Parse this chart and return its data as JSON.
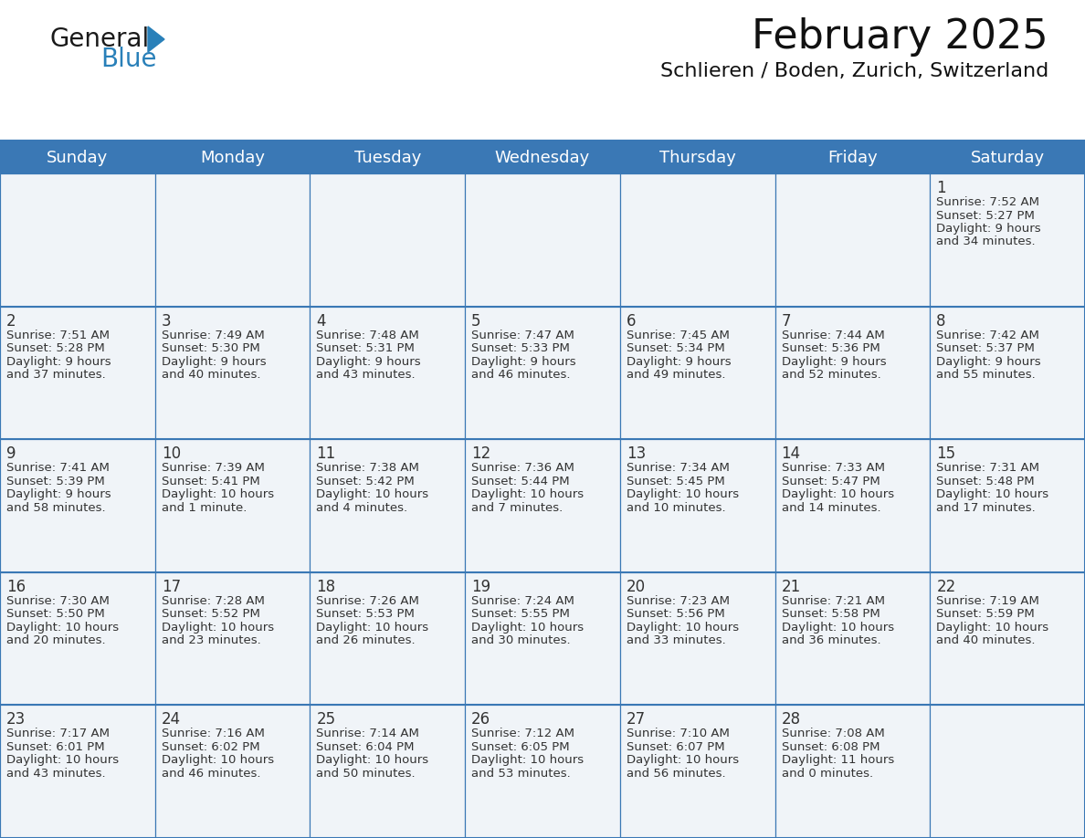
{
  "title": "February 2025",
  "subtitle": "Schlieren / Boden, Zurich, Switzerland",
  "header_bg": "#3a78b5",
  "header_text": "#ffffff",
  "cell_bg": "#f0f4f8",
  "border_color": "#3a78b5",
  "text_color": "#333333",
  "day_num_color": "#333333",
  "days_of_week": [
    "Sunday",
    "Monday",
    "Tuesday",
    "Wednesday",
    "Thursday",
    "Friday",
    "Saturday"
  ],
  "calendar": [
    [
      null,
      null,
      null,
      null,
      null,
      null,
      {
        "day": 1,
        "sunrise": "7:52 AM",
        "sunset": "5:27 PM",
        "daylight_h": "9 hours",
        "daylight_m": "and 34 minutes."
      }
    ],
    [
      {
        "day": 2,
        "sunrise": "7:51 AM",
        "sunset": "5:28 PM",
        "daylight_h": "9 hours",
        "daylight_m": "and 37 minutes."
      },
      {
        "day": 3,
        "sunrise": "7:49 AM",
        "sunset": "5:30 PM",
        "daylight_h": "9 hours",
        "daylight_m": "and 40 minutes."
      },
      {
        "day": 4,
        "sunrise": "7:48 AM",
        "sunset": "5:31 PM",
        "daylight_h": "9 hours",
        "daylight_m": "and 43 minutes."
      },
      {
        "day": 5,
        "sunrise": "7:47 AM",
        "sunset": "5:33 PM",
        "daylight_h": "9 hours",
        "daylight_m": "and 46 minutes."
      },
      {
        "day": 6,
        "sunrise": "7:45 AM",
        "sunset": "5:34 PM",
        "daylight_h": "9 hours",
        "daylight_m": "and 49 minutes."
      },
      {
        "day": 7,
        "sunrise": "7:44 AM",
        "sunset": "5:36 PM",
        "daylight_h": "9 hours",
        "daylight_m": "and 52 minutes."
      },
      {
        "day": 8,
        "sunrise": "7:42 AM",
        "sunset": "5:37 PM",
        "daylight_h": "9 hours",
        "daylight_m": "and 55 minutes."
      }
    ],
    [
      {
        "day": 9,
        "sunrise": "7:41 AM",
        "sunset": "5:39 PM",
        "daylight_h": "9 hours",
        "daylight_m": "and 58 minutes."
      },
      {
        "day": 10,
        "sunrise": "7:39 AM",
        "sunset": "5:41 PM",
        "daylight_h": "10 hours",
        "daylight_m": "and 1 minute."
      },
      {
        "day": 11,
        "sunrise": "7:38 AM",
        "sunset": "5:42 PM",
        "daylight_h": "10 hours",
        "daylight_m": "and 4 minutes."
      },
      {
        "day": 12,
        "sunrise": "7:36 AM",
        "sunset": "5:44 PM",
        "daylight_h": "10 hours",
        "daylight_m": "and 7 minutes."
      },
      {
        "day": 13,
        "sunrise": "7:34 AM",
        "sunset": "5:45 PM",
        "daylight_h": "10 hours",
        "daylight_m": "and 10 minutes."
      },
      {
        "day": 14,
        "sunrise": "7:33 AM",
        "sunset": "5:47 PM",
        "daylight_h": "10 hours",
        "daylight_m": "and 14 minutes."
      },
      {
        "day": 15,
        "sunrise": "7:31 AM",
        "sunset": "5:48 PM",
        "daylight_h": "10 hours",
        "daylight_m": "and 17 minutes."
      }
    ],
    [
      {
        "day": 16,
        "sunrise": "7:30 AM",
        "sunset": "5:50 PM",
        "daylight_h": "10 hours",
        "daylight_m": "and 20 minutes."
      },
      {
        "day": 17,
        "sunrise": "7:28 AM",
        "sunset": "5:52 PM",
        "daylight_h": "10 hours",
        "daylight_m": "and 23 minutes."
      },
      {
        "day": 18,
        "sunrise": "7:26 AM",
        "sunset": "5:53 PM",
        "daylight_h": "10 hours",
        "daylight_m": "and 26 minutes."
      },
      {
        "day": 19,
        "sunrise": "7:24 AM",
        "sunset": "5:55 PM",
        "daylight_h": "10 hours",
        "daylight_m": "and 30 minutes."
      },
      {
        "day": 20,
        "sunrise": "7:23 AM",
        "sunset": "5:56 PM",
        "daylight_h": "10 hours",
        "daylight_m": "and 33 minutes."
      },
      {
        "day": 21,
        "sunrise": "7:21 AM",
        "sunset": "5:58 PM",
        "daylight_h": "10 hours",
        "daylight_m": "and 36 minutes."
      },
      {
        "day": 22,
        "sunrise": "7:19 AM",
        "sunset": "5:59 PM",
        "daylight_h": "10 hours",
        "daylight_m": "and 40 minutes."
      }
    ],
    [
      {
        "day": 23,
        "sunrise": "7:17 AM",
        "sunset": "6:01 PM",
        "daylight_h": "10 hours",
        "daylight_m": "and 43 minutes."
      },
      {
        "day": 24,
        "sunrise": "7:16 AM",
        "sunset": "6:02 PM",
        "daylight_h": "10 hours",
        "daylight_m": "and 46 minutes."
      },
      {
        "day": 25,
        "sunrise": "7:14 AM",
        "sunset": "6:04 PM",
        "daylight_h": "10 hours",
        "daylight_m": "and 50 minutes."
      },
      {
        "day": 26,
        "sunrise": "7:12 AM",
        "sunset": "6:05 PM",
        "daylight_h": "10 hours",
        "daylight_m": "and 53 minutes."
      },
      {
        "day": 27,
        "sunrise": "7:10 AM",
        "sunset": "6:07 PM",
        "daylight_h": "10 hours",
        "daylight_m": "and 56 minutes."
      },
      {
        "day": 28,
        "sunrise": "7:08 AM",
        "sunset": "6:08 PM",
        "daylight_h": "11 hours",
        "daylight_m": "and 0 minutes."
      },
      null
    ]
  ],
  "logo_text1": "General",
  "logo_text2": "Blue",
  "logo_color1": "#1a1a1a",
  "logo_color2": "#2980b9",
  "title_fontsize": 32,
  "subtitle_fontsize": 16,
  "header_fontsize": 13,
  "day_num_fontsize": 12,
  "cell_text_fontsize": 9.5
}
